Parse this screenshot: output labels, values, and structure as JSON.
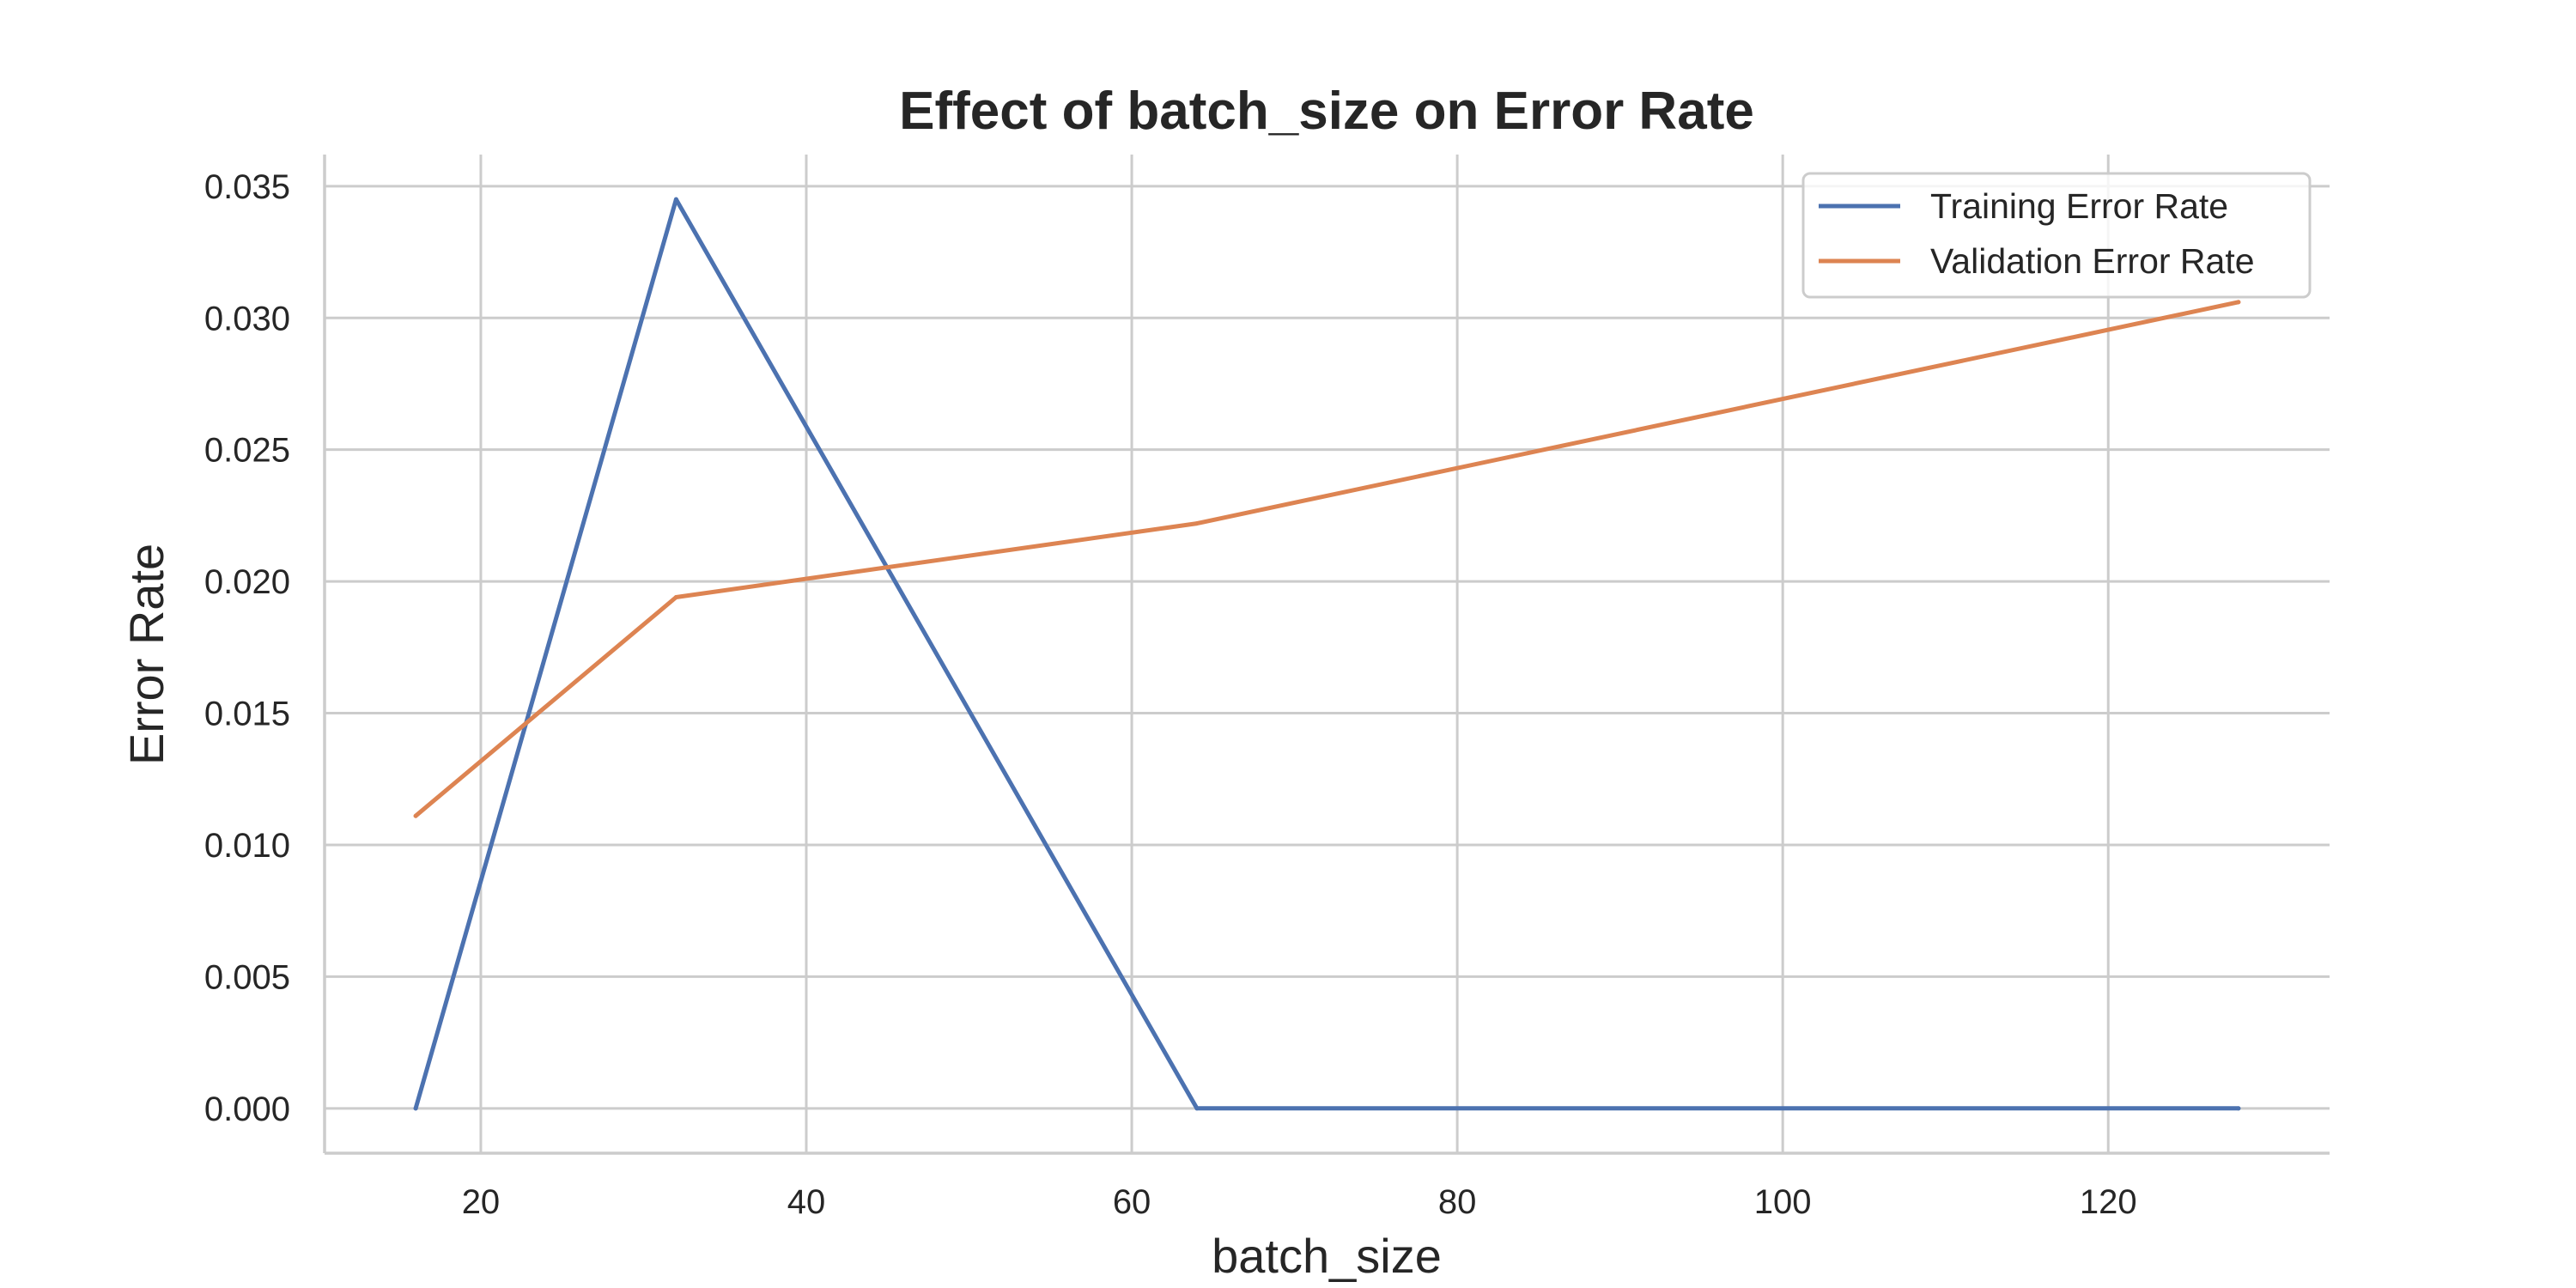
{
  "chart_data": {
    "type": "line",
    "title": "Effect of batch_size on Error Rate",
    "xlabel": "batch_size",
    "ylabel": "Error Rate",
    "x": [
      16,
      32,
      64,
      128
    ],
    "series": [
      {
        "name": "Training Error Rate",
        "color": "#4c72b0",
        "values": [
          0.0,
          0.0345,
          0.0,
          0.0
        ]
      },
      {
        "name": "Validation Error Rate",
        "color": "#dd8452",
        "values": [
          0.0111,
          0.0194,
          0.0222,
          0.0306
        ]
      }
    ],
    "xlim": [
      10.4,
      133.6
    ],
    "ylim": [
      -0.0017,
      0.0362
    ],
    "xticks": [
      20,
      40,
      60,
      80,
      100,
      120
    ],
    "yticks": [
      0.0,
      0.005,
      0.01,
      0.015,
      0.02,
      0.025,
      0.03,
      0.035
    ],
    "xtick_labels": [
      "20",
      "40",
      "60",
      "80",
      "100",
      "120"
    ],
    "ytick_labels": [
      "0.000",
      "0.005",
      "0.010",
      "0.015",
      "0.020",
      "0.025",
      "0.030",
      "0.035"
    ],
    "grid": true,
    "legend_position": "top-right"
  }
}
